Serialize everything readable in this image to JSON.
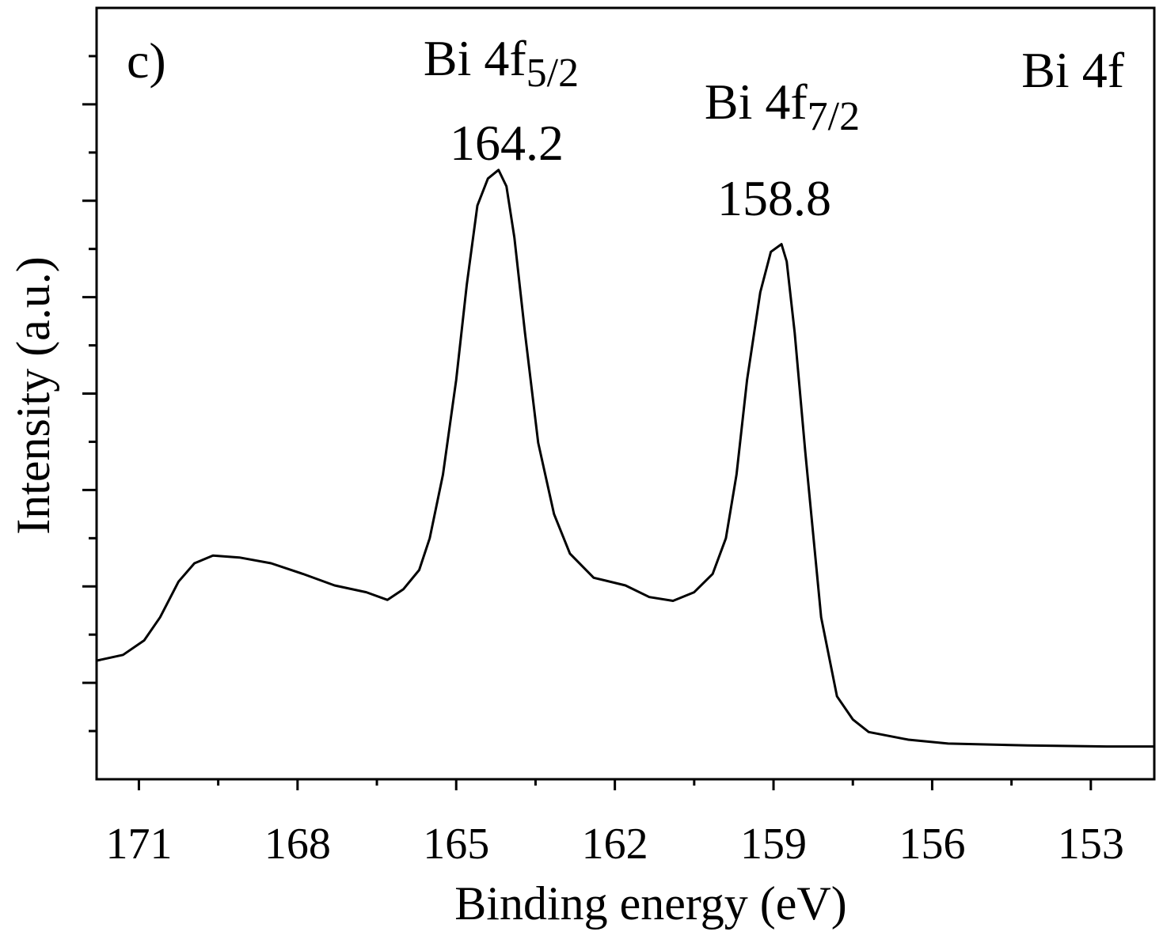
{
  "chart_data": {
    "type": "line",
    "xlabel": "Binding energy (eV)",
    "ylabel": "Intensity (a.u.)",
    "annotations": [
      {
        "text": "c)"
      },
      {
        "text": "Bi 4f"
      },
      {
        "text": "Bi 4f",
        "sub": "5/2"
      },
      {
        "text": "164.2"
      },
      {
        "text": "Bi 4f",
        "sub": "7/2"
      },
      {
        "text": "158.8"
      }
    ],
    "xlim": [
      171.8,
      151.8
    ],
    "xticks": [
      171,
      168,
      165,
      162,
      159,
      156,
      153
    ],
    "ylim": [
      0,
      8
    ],
    "yticks": [
      1,
      2,
      3,
      4,
      5,
      6,
      7
    ],
    "color": "#000000",
    "x": [
      171.8,
      171.3,
      170.9,
      170.6,
      170.25,
      169.95,
      169.6,
      169.1,
      168.5,
      167.9,
      167.3,
      166.7,
      166.3,
      166.0,
      165.7,
      165.5,
      165.25,
      165.0,
      164.8,
      164.6,
      164.4,
      164.2,
      164.05,
      163.9,
      163.7,
      163.45,
      163.15,
      162.85,
      162.4,
      161.8,
      161.35,
      160.9,
      160.5,
      160.15,
      159.9,
      159.7,
      159.5,
      159.25,
      159.05,
      158.85,
      158.75,
      158.6,
      158.4,
      158.1,
      157.8,
      157.5,
      157.2,
      156.45,
      155.7,
      154.2,
      152.7,
      151.8
    ],
    "values": [
      1.23,
      1.29,
      1.44,
      1.68,
      2.05,
      2.24,
      2.32,
      2.3,
      2.24,
      2.13,
      2.01,
      1.94,
      1.86,
      1.97,
      2.17,
      2.5,
      3.16,
      4.14,
      5.13,
      5.95,
      6.23,
      6.32,
      6.15,
      5.62,
      4.63,
      3.49,
      2.75,
      2.34,
      2.09,
      2.01,
      1.89,
      1.85,
      1.94,
      2.13,
      2.5,
      3.16,
      4.14,
      5.05,
      5.47,
      5.55,
      5.37,
      4.63,
      3.4,
      1.68,
      0.86,
      0.62,
      0.49,
      0.41,
      0.37,
      0.35,
      0.34,
      0.34
    ]
  }
}
